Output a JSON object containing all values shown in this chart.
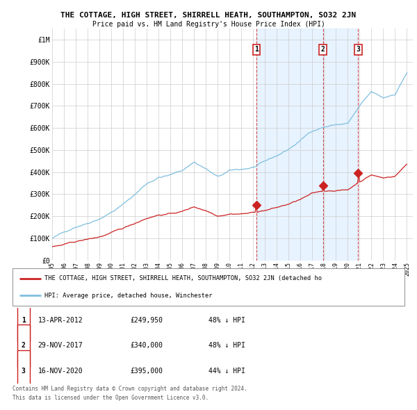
{
  "title": "THE COTTAGE, HIGH STREET, SHIRRELL HEATH, SOUTHAMPTON, SO32 2JN",
  "subtitle": "Price paid vs. HM Land Registry's House Price Index (HPI)",
  "ylim": [
    0,
    1050000
  ],
  "yticks": [
    0,
    100000,
    200000,
    300000,
    400000,
    500000,
    600000,
    700000,
    800000,
    900000,
    1000000
  ],
  "ytick_labels": [
    "£0",
    "£100K",
    "£200K",
    "£300K",
    "£400K",
    "£500K",
    "£600K",
    "£700K",
    "£800K",
    "£900K",
    "£1M"
  ],
  "xlim": [
    1995.0,
    2025.5
  ],
  "hpi_color": "#7fbfdf",
  "price_color": "#cc2222",
  "shade_color": "#ddeeff",
  "grid_color": "#cccccc",
  "sales": [
    {
      "date": 2012.28,
      "price": 249950,
      "label": "1"
    },
    {
      "date": 2017.91,
      "price": 340000,
      "label": "2"
    },
    {
      "date": 2020.88,
      "price": 395000,
      "label": "3"
    }
  ],
  "legend_property": "THE COTTAGE, HIGH STREET, SHIRRELL HEATH, SOUTHAMPTON, SO32 2JN (detached ho",
  "legend_hpi": "HPI: Average price, detached house, Winchester",
  "table_rows": [
    [
      "1",
      "13-APR-2012",
      "£249,950",
      "48% ↓ HPI"
    ],
    [
      "2",
      "29-NOV-2017",
      "£340,000",
      "48% ↓ HPI"
    ],
    [
      "3",
      "16-NOV-2020",
      "£395,000",
      "44% ↓ HPI"
    ]
  ],
  "footnote1": "Contains HM Land Registry data © Crown copyright and database right 2024.",
  "footnote2": "This data is licensed under the Open Government Licence v3.0."
}
